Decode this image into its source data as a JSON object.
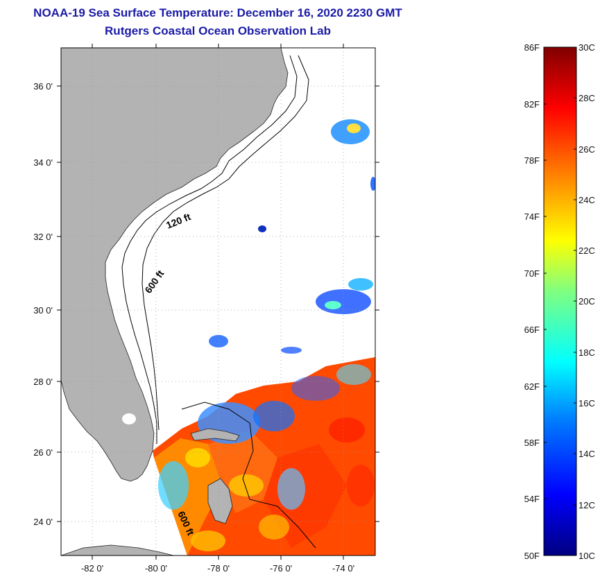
{
  "header": {
    "title": "NOAA-19 Sea Surface Temperature:  December 16, 2020 2230 GMT",
    "subtitle": "Rutgers Coastal Ocean Observation Lab"
  },
  "map": {
    "lat_labels": [
      "36 0'",
      "34 0'",
      "32 0'",
      "30 0'",
      "28 0'",
      "26 0'",
      "24 0'"
    ],
    "lon_labels": [
      "-82 0'",
      "-80 0'",
      "-78 0'",
      "-76 0'",
      "-74 0'"
    ],
    "contour_labels": [
      "120 ft",
      "600 ft",
      "600 ft"
    ],
    "land_color": "#b3b3b3",
    "ocean_color": "#ffffff"
  },
  "colorbar": {
    "fahrenheit_labels": [
      "86F",
      "82F",
      "78F",
      "74F",
      "70F",
      "66F",
      "62F",
      "58F",
      "54F",
      "50F"
    ],
    "celsius_labels": [
      "30C",
      "28C",
      "26C",
      "24C",
      "22C",
      "20C",
      "18C",
      "16C",
      "14C",
      "12C",
      "10C"
    ],
    "colors": [
      "#000080",
      "#0000ff",
      "#0080ff",
      "#00ffff",
      "#80ff80",
      "#ffff00",
      "#ff8000",
      "#ff0000",
      "#800000"
    ]
  }
}
